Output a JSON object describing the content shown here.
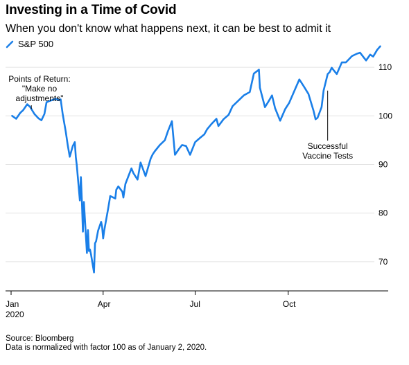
{
  "header": {
    "title": "Investing in a Time of Covid",
    "subtitle": "When you don't know what happens next, it can be best to admit it"
  },
  "footer": {
    "source": "Source: Bloomberg",
    "note": "Data is normalized with factor 100 as of January 2, 2020."
  },
  "colors": {
    "series": "#1a7fe8",
    "grid": "#e4e4e4",
    "axis": "#000000"
  },
  "chart_data": {
    "type": "line",
    "title": "Investing in a Time of Covid",
    "subtitle": "When you don't know what happens next, it can be best to admit it",
    "xlabel": "",
    "ylabel": "",
    "x_ticks": [
      "Jan",
      "Apr",
      "Jul",
      "Oct"
    ],
    "x_tick_days": [
      0,
      91,
      182,
      274
    ],
    "x_year_label": "2020",
    "y_ticks": [
      70,
      80,
      90,
      100,
      110
    ],
    "ylim": [
      64,
      116
    ],
    "y_axis_side": "right",
    "grid": "horizontal",
    "legend": {
      "position": "top-left",
      "entries": [
        "S&P 500"
      ]
    },
    "series": [
      {
        "name": "S&P 500",
        "x": [
          "2020-01-02",
          "2020-01-06",
          "2020-01-10",
          "2020-01-13",
          "2020-01-17",
          "2020-01-20",
          "2020-01-24",
          "2020-01-28",
          "2020-01-31",
          "2020-02-03",
          "2020-02-05",
          "2020-02-07",
          "2020-02-10",
          "2020-02-14",
          "2020-02-17",
          "2020-02-19",
          "2020-02-21",
          "2020-02-24",
          "2020-02-26",
          "2020-02-28",
          "2020-03-02",
          "2020-03-04",
          "2020-03-05",
          "2020-03-06",
          "2020-03-09",
          "2020-03-10",
          "2020-03-11",
          "2020-03-12",
          "2020-03-13",
          "2020-03-16",
          "2020-03-17",
          "2020-03-18",
          "2020-03-19",
          "2020-03-20",
          "2020-03-23",
          "2020-03-24",
          "2020-03-25",
          "2020-03-27",
          "2020-03-30",
          "2020-03-31",
          "2020-04-01",
          "2020-04-02",
          "2020-04-06",
          "2020-04-08",
          "2020-04-13",
          "2020-04-14",
          "2020-04-16",
          "2020-04-20",
          "2020-04-21",
          "2020-04-23",
          "2020-04-29",
          "2020-05-01",
          "2020-05-05",
          "2020-05-08",
          "2020-05-13",
          "2020-05-18",
          "2020-05-20",
          "2020-05-22",
          "2020-05-27",
          "2020-06-01",
          "2020-06-04",
          "2020-06-08",
          "2020-06-11",
          "2020-06-15",
          "2020-06-18",
          "2020-06-22",
          "2020-06-26",
          "2020-07-01",
          "2020-07-06",
          "2020-07-10",
          "2020-07-13",
          "2020-07-17",
          "2020-07-22",
          "2020-07-24",
          "2020-07-29",
          "2020-08-03",
          "2020-08-07",
          "2020-08-12",
          "2020-08-18",
          "2020-08-24",
          "2020-08-28",
          "2020-09-02",
          "2020-09-03",
          "2020-09-08",
          "2020-09-11",
          "2020-09-15",
          "2020-09-18",
          "2020-09-23",
          "2020-09-28",
          "2020-10-02",
          "2020-10-07",
          "2020-10-12",
          "2020-10-16",
          "2020-10-21",
          "2020-10-26",
          "2020-10-28",
          "2020-10-30",
          "2020-11-03",
          "2020-11-05",
          "2020-11-09",
          "2020-11-11",
          "2020-11-13",
          "2020-11-18",
          "2020-11-23",
          "2020-11-27",
          "2020-12-03",
          "2020-12-08",
          "2020-12-11",
          "2020-12-17",
          "2020-12-21",
          "2020-12-24",
          "2020-12-28",
          "2020-12-31"
        ],
        "values": [
          100.0,
          99.4,
          100.6,
          101.2,
          102.4,
          101.8,
          100.4,
          99.5,
          99.1,
          100.4,
          102.8,
          103.0,
          103.2,
          103.5,
          103.3,
          103.4,
          100.4,
          96.8,
          94.0,
          91.6,
          93.8,
          94.6,
          91.5,
          89.8,
          82.6,
          87.4,
          82.6,
          76.2,
          82.3,
          71.8,
          76.5,
          72.2,
          72.5,
          71.5,
          67.8,
          73.8,
          74.2,
          76.4,
          78.2,
          77.2,
          74.8,
          76.3,
          81.0,
          83.5,
          83.0,
          84.8,
          85.5,
          84.4,
          83.2,
          86.0,
          89.2,
          88.2,
          86.9,
          90.4,
          87.6,
          91.2,
          92.1,
          92.7,
          94.0,
          95.0,
          96.8,
          98.9,
          92.0,
          93.2,
          94.0,
          93.8,
          92.0,
          94.6,
          95.5,
          96.2,
          97.3,
          98.3,
          99.4,
          97.9,
          99.3,
          100.2,
          102.0,
          103.0,
          104.2,
          104.9,
          108.7,
          109.5,
          105.8,
          101.8,
          102.8,
          104.2,
          101.6,
          99.0,
          101.4,
          102.7,
          105.1,
          107.5,
          106.2,
          104.5,
          101.1,
          99.3,
          99.6,
          101.8,
          105.2,
          108.6,
          109.0,
          109.9,
          108.6,
          111.0,
          111.0,
          112.3,
          112.8,
          113.0,
          111.4,
          112.6,
          112.2,
          113.6,
          114.3
        ]
      }
    ],
    "annotations": [
      {
        "lines": [
          "Points of Return:",
          "\"Make no",
          "adjustments\""
        ],
        "date": "2020-01-21",
        "value": 101.4
      },
      {
        "lines": [
          "Successful",
          "Vaccine Tests"
        ],
        "date": "2020-11-09",
        "value": 105.2
      }
    ]
  }
}
